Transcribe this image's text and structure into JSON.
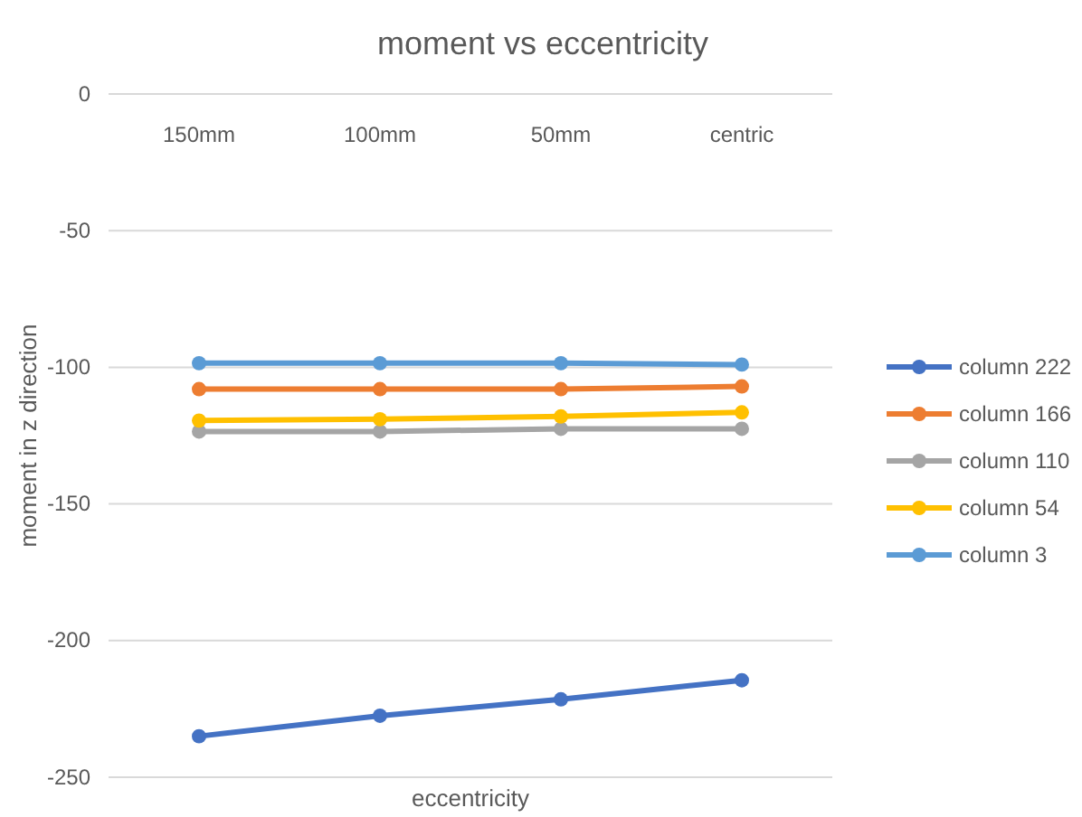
{
  "chart_data": {
    "type": "line",
    "title": "moment vs eccentricity",
    "xlabel": "eccentricity",
    "ylabel": "moment in z direction",
    "categories": [
      "150mm",
      "100mm",
      "50mm",
      "centric"
    ],
    "series": [
      {
        "name": "column 222",
        "color": "#4472c4",
        "values": [
          -235,
          -227.5,
          -221.5,
          -214.5
        ]
      },
      {
        "name": "column 166",
        "color": "#ed7d31",
        "values": [
          -108,
          -108,
          -108,
          -107
        ]
      },
      {
        "name": "column 110",
        "color": "#a5a5a5",
        "values": [
          -123.5,
          -123.5,
          -122.5,
          -122.5
        ]
      },
      {
        "name": "column 54",
        "color": "#ffc000",
        "values": [
          -119.5,
          -119,
          -118,
          -116.5
        ]
      },
      {
        "name": "column 3",
        "color": "#5b9bd5",
        "values": [
          -98.5,
          -98.5,
          -98.5,
          -99
        ]
      }
    ],
    "ylim": [
      -250,
      0
    ],
    "yticks": [
      -250,
      -200,
      -150,
      -100,
      -50,
      0
    ],
    "grid": "y",
    "legend": "right",
    "marker": "circle"
  }
}
